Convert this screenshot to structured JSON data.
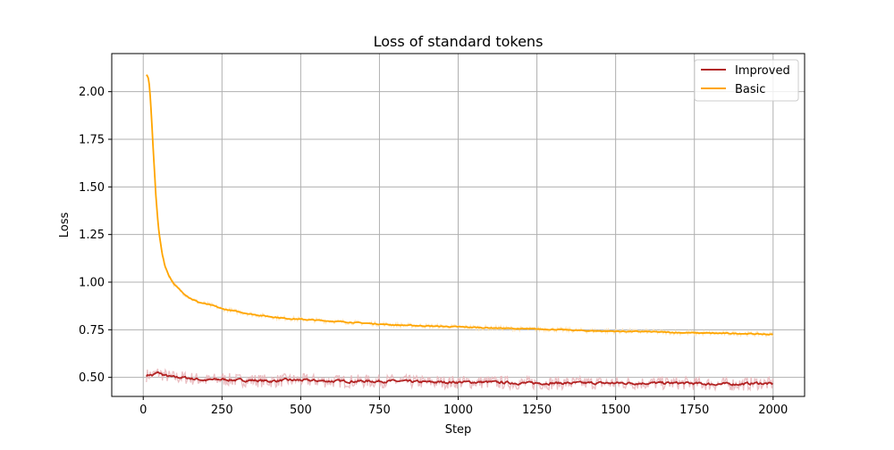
{
  "chart_data": {
    "type": "line",
    "title": "Loss of standard tokens",
    "xlabel": "Step",
    "ylabel": "Loss",
    "xlim": [
      -100,
      2100
    ],
    "ylim": [
      0.4,
      2.2
    ],
    "grid": true,
    "legend_position": "top-right",
    "x_ticks": [
      {
        "value": 0,
        "label": "0"
      },
      {
        "value": 250,
        "label": "250"
      },
      {
        "value": 500,
        "label": "500"
      },
      {
        "value": 750,
        "label": "750"
      },
      {
        "value": 1000,
        "label": "1000"
      },
      {
        "value": 1250,
        "label": "1250"
      },
      {
        "value": 1500,
        "label": "1500"
      },
      {
        "value": 1750,
        "label": "1750"
      },
      {
        "value": 2000,
        "label": "2000"
      }
    ],
    "y_ticks": [
      {
        "value": 0.5,
        "label": "0.50"
      },
      {
        "value": 0.75,
        "label": "0.75"
      },
      {
        "value": 1.0,
        "label": "1.00"
      },
      {
        "value": 1.25,
        "label": "1.25"
      },
      {
        "value": 1.5,
        "label": "1.50"
      },
      {
        "value": 1.75,
        "label": "1.75"
      },
      {
        "value": 2.0,
        "label": "2.00"
      }
    ],
    "series": [
      {
        "name": "Improved",
        "color": "#b22222",
        "raw_color": "#e8b4b8",
        "x": [
          10,
          20,
          30,
          40,
          50,
          60,
          70,
          80,
          100,
          125,
          150,
          175,
          200,
          250,
          300,
          350,
          400,
          450,
          500,
          600,
          700,
          800,
          900,
          1000,
          1100,
          1200,
          1250,
          1300,
          1400,
          1500,
          1600,
          1700,
          1750,
          1800,
          1900,
          1950,
          2000
        ],
        "y": [
          0.51,
          0.515,
          0.51,
          0.52,
          0.525,
          0.515,
          0.51,
          0.505,
          0.5,
          0.5,
          0.495,
          0.49,
          0.485,
          0.49,
          0.485,
          0.485,
          0.48,
          0.485,
          0.485,
          0.48,
          0.48,
          0.48,
          0.475,
          0.475,
          0.475,
          0.47,
          0.47,
          0.47,
          0.47,
          0.47,
          0.47,
          0.47,
          0.468,
          0.465,
          0.465,
          0.47,
          0.465
        ]
      },
      {
        "name": "Basic",
        "color": "#ffa500",
        "raw_color": "#ffe2b3",
        "x": [
          10,
          15,
          20,
          25,
          30,
          35,
          40,
          45,
          50,
          60,
          70,
          80,
          90,
          100,
          125,
          150,
          175,
          200,
          225,
          250,
          300,
          350,
          400,
          450,
          500,
          600,
          700,
          800,
          900,
          1000,
          1100,
          1200,
          1300,
          1400,
          1500,
          1600,
          1700,
          1800,
          1900,
          1950,
          2000
        ],
        "y": [
          2.09,
          2.08,
          2.03,
          1.9,
          1.75,
          1.6,
          1.46,
          1.35,
          1.26,
          1.15,
          1.08,
          1.04,
          1.01,
          0.985,
          0.945,
          0.915,
          0.895,
          0.885,
          0.875,
          0.86,
          0.845,
          0.83,
          0.82,
          0.81,
          0.805,
          0.795,
          0.785,
          0.775,
          0.77,
          0.765,
          0.76,
          0.755,
          0.752,
          0.745,
          0.742,
          0.74,
          0.735,
          0.732,
          0.73,
          0.728,
          0.725
        ]
      }
    ]
  }
}
